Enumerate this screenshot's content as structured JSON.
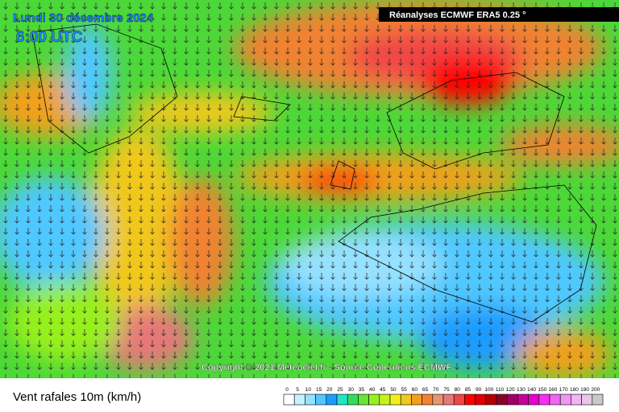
{
  "header": {
    "date": "Lundi 30 décembre 2024",
    "time": "6:00 UTC",
    "source": "Réanalyses ECMWF ERA5 0.25 °"
  },
  "copyright": "Copyright © 2021 Meteociel.fr - Source Copernicus ECMWF",
  "legend": {
    "title": "Vent rafales 10m (km/h)",
    "labels": [
      0,
      5,
      10,
      15,
      20,
      25,
      30,
      35,
      40,
      45,
      50,
      55,
      60,
      65,
      70,
      75,
      80,
      85,
      90,
      100,
      110,
      120,
      130,
      140,
      150,
      160,
      170,
      180,
      190,
      200
    ],
    "colors": [
      "#ffffff",
      "#c8f0ff",
      "#96e1ff",
      "#50c8ff",
      "#1e9bff",
      "#1ee6c8",
      "#32dc64",
      "#64e632",
      "#96f01e",
      "#c8f01e",
      "#f0f01e",
      "#f0c81e",
      "#f0a01e",
      "#f08232",
      "#e6966e",
      "#e67878",
      "#f04646",
      "#ff0000",
      "#dc0000",
      "#b40000",
      "#8c0028",
      "#a00064",
      "#c80096",
      "#e600c8",
      "#f032f0",
      "#f064f0",
      "#f096f0",
      "#f0b4f0",
      "#e6c8e6",
      "#c8c8c8"
    ]
  }
}
